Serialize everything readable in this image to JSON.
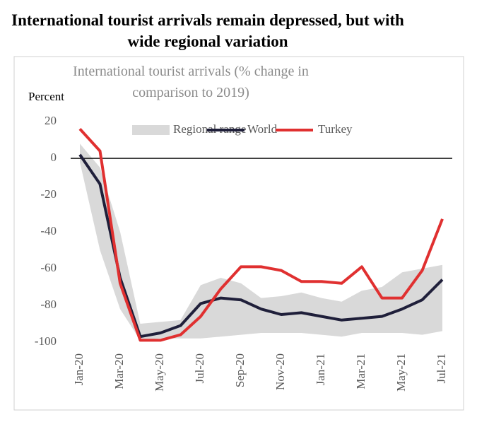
{
  "chart_data": {
    "type": "line",
    "title": "International tourist arrivals remain depressed, but with wide regional variation",
    "subtitle": "International tourist arrivals (% change in comparison to 2019)",
    "y_label": "Percent",
    "categories": [
      "Jan-20",
      null,
      "Mar-20",
      null,
      "May-20",
      null,
      "Jul-20",
      null,
      "Sep-20",
      null,
      "Nov-20",
      null,
      "Jan-21",
      null,
      "Mar-21",
      null,
      "May-21",
      null,
      "Jul-21"
    ],
    "range": {
      "name": "Regional range",
      "color": "#d9d9d9",
      "upper": [
        8,
        -5,
        -40,
        -90,
        -89,
        -88,
        -69,
        -65,
        -68,
        -76,
        -75,
        -73,
        -76,
        -78,
        -72,
        -70,
        -62,
        -60,
        -58
      ],
      "lower": [
        -2,
        -50,
        -82,
        -99,
        -98,
        -98,
        -98,
        -97,
        -96,
        -95,
        -95,
        -95,
        -96,
        -97,
        -95,
        -95,
        -95,
        -96,
        -94
      ]
    },
    "series": [
      {
        "name": "World",
        "color": "#1f1f3a",
        "values": [
          2,
          -14,
          -65,
          -97,
          -95,
          -91,
          -79,
          -76,
          -77,
          -82,
          -85,
          -84,
          -86,
          -88,
          -87,
          -86,
          -82,
          -77,
          -66
        ]
      },
      {
        "name": "Turkey",
        "color": "#e03030",
        "values": [
          16,
          4,
          -68,
          -99,
          -99,
          -96,
          -86,
          -71,
          -59,
          -59,
          -61,
          -67,
          -67,
          -68,
          -59,
          -76,
          -76,
          -61,
          -33
        ]
      }
    ],
    "ylim": [
      -100,
      20
    ],
    "yticks": [
      20,
      0,
      -20,
      -40,
      -60,
      -80,
      -100
    ],
    "zero_line": true,
    "legend": "top"
  }
}
